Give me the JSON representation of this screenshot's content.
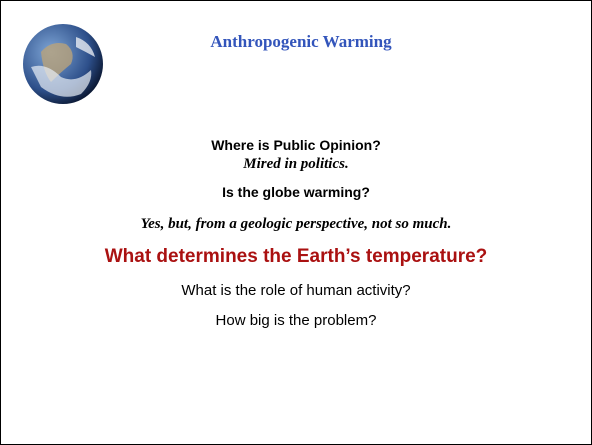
{
  "header": {
    "title": "Anthropogenic Warming"
  },
  "lines": [
    {
      "text": "Where is Public Opinion?",
      "style": "bold"
    },
    {
      "text": "Mired in politics.",
      "style": "serif-italic"
    },
    {
      "text": "Is the globe warming?",
      "style": "bold"
    },
    {
      "text": "Yes, but, from a geologic perspective, not so much.",
      "style": "serif-italic"
    },
    {
      "text": "What determines the Earth’s temperature?",
      "style": "highlight"
    },
    {
      "text": "What is the role of human activity?",
      "style": "plain"
    },
    {
      "text": "How big is the problem?",
      "style": "plain"
    }
  ]
}
